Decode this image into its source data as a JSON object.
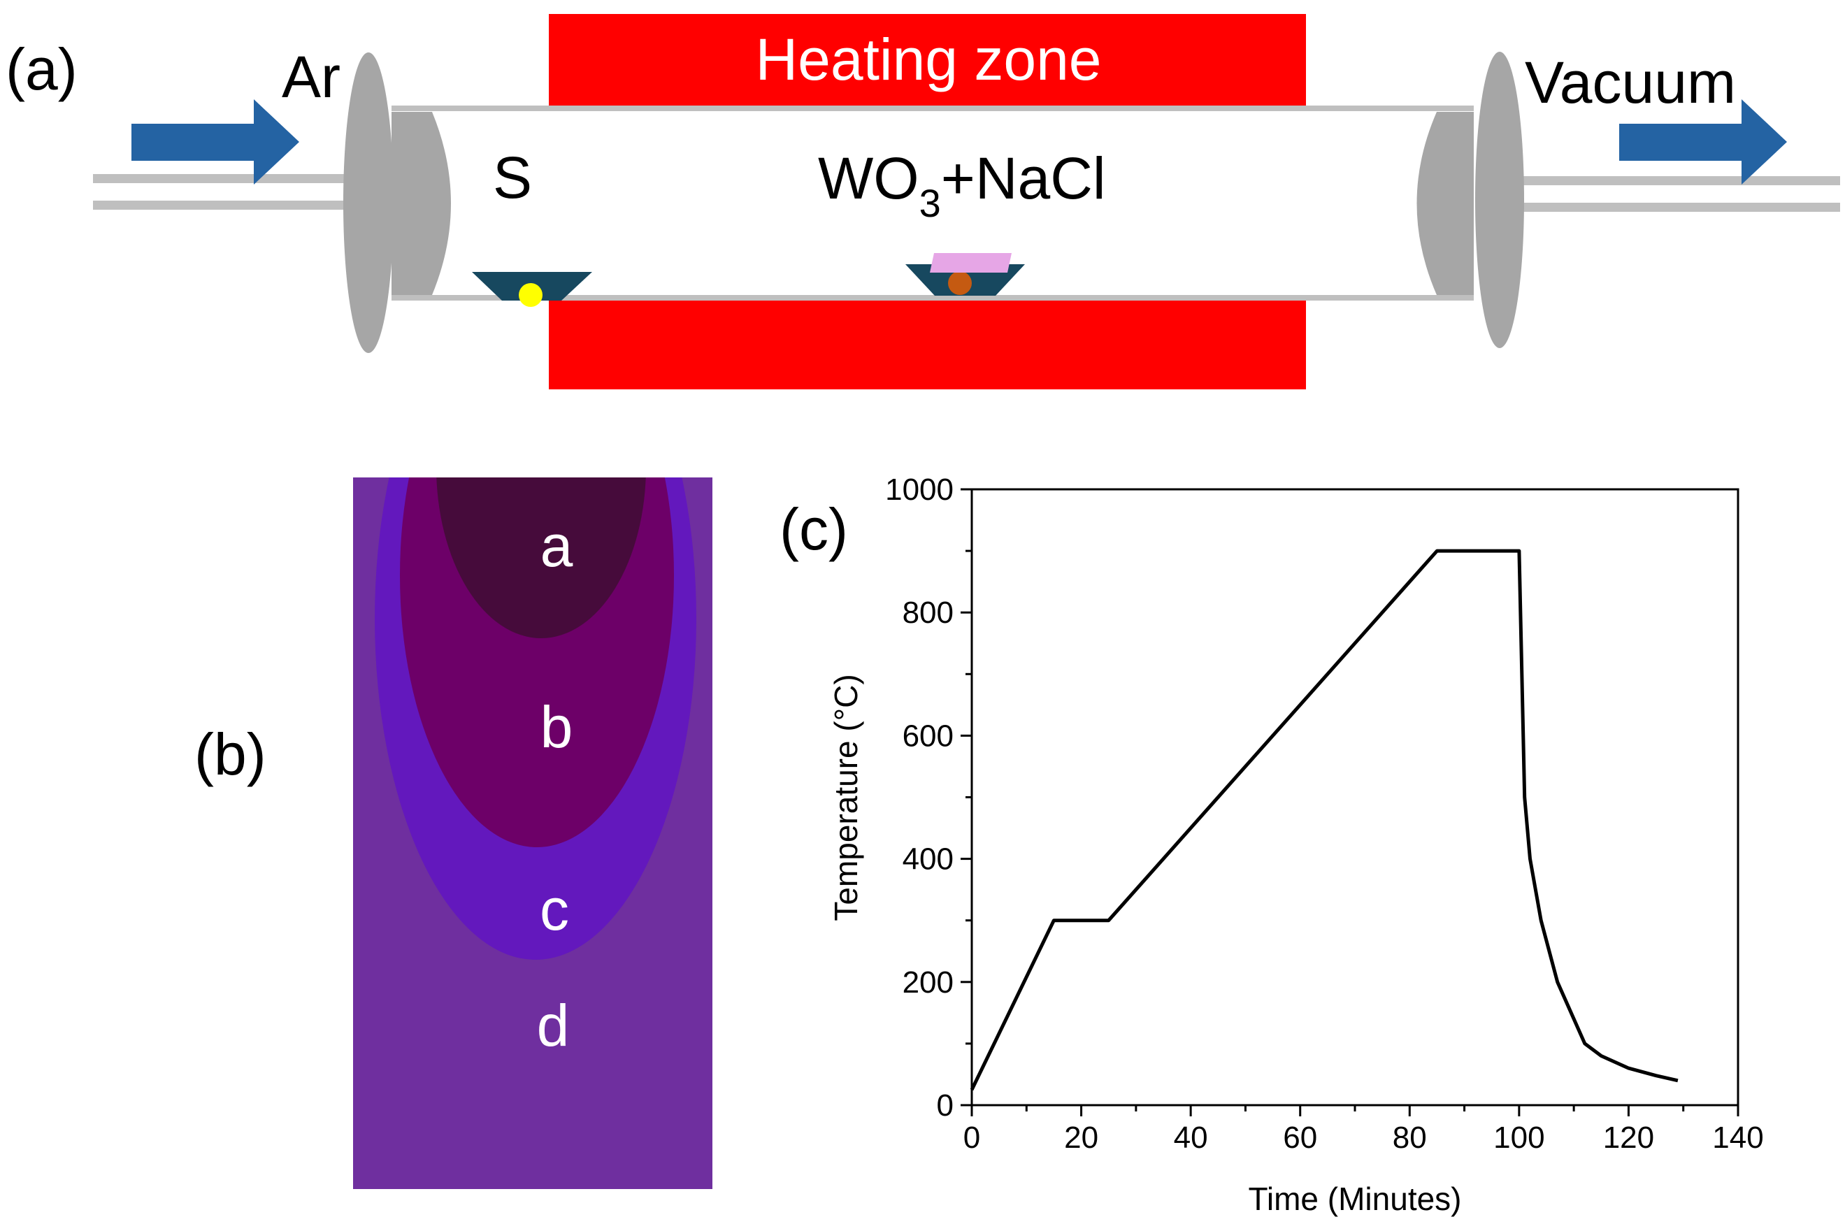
{
  "panel_a": {
    "label": "(a)",
    "inlet_label": "Ar",
    "outlet_label": "Vacuum",
    "heating_zone_label": "Heating zone",
    "sulfur_label": "S",
    "precursor": {
      "base": "WO",
      "subscript": "3",
      "suffix": "+NaCl"
    },
    "colors": {
      "heater": "#ff0000",
      "arrow": "#2463a3",
      "flange": "#a6a6a6",
      "boat": "#17485f",
      "sulfur": "#ffff00",
      "precursor_dot": "#c55a11",
      "substrate": "#e6a6e6"
    }
  },
  "panel_b": {
    "label": "(b)",
    "zones": [
      {
        "label": "a",
        "color": "#460b3b"
      },
      {
        "label": "b",
        "color": "#6d0068"
      },
      {
        "label": "c",
        "color": "#6318bd"
      },
      {
        "label": "d",
        "color": "#6f2f9f"
      }
    ]
  },
  "panel_c": {
    "label": "(c)"
  },
  "chart_data": {
    "type": "line",
    "title": "",
    "xlabel": "Time (Minutes)",
    "ylabel": "Temperature (°C)",
    "xlim": [
      0,
      140
    ],
    "ylim": [
      0,
      1000
    ],
    "xticks": [
      0,
      20,
      40,
      60,
      80,
      100,
      120,
      140
    ],
    "yticks": [
      0,
      200,
      400,
      600,
      800,
      1000
    ],
    "grid": false,
    "series": [
      {
        "name": "Temperature profile",
        "x": [
          0,
          15,
          25,
          85,
          100,
          100.5,
          101,
          102,
          104,
          107,
          112,
          115,
          120,
          125,
          129
        ],
        "y": [
          25,
          300,
          300,
          900,
          900,
          700,
          500,
          400,
          300,
          200,
          100,
          80,
          60,
          48,
          40
        ]
      }
    ]
  }
}
